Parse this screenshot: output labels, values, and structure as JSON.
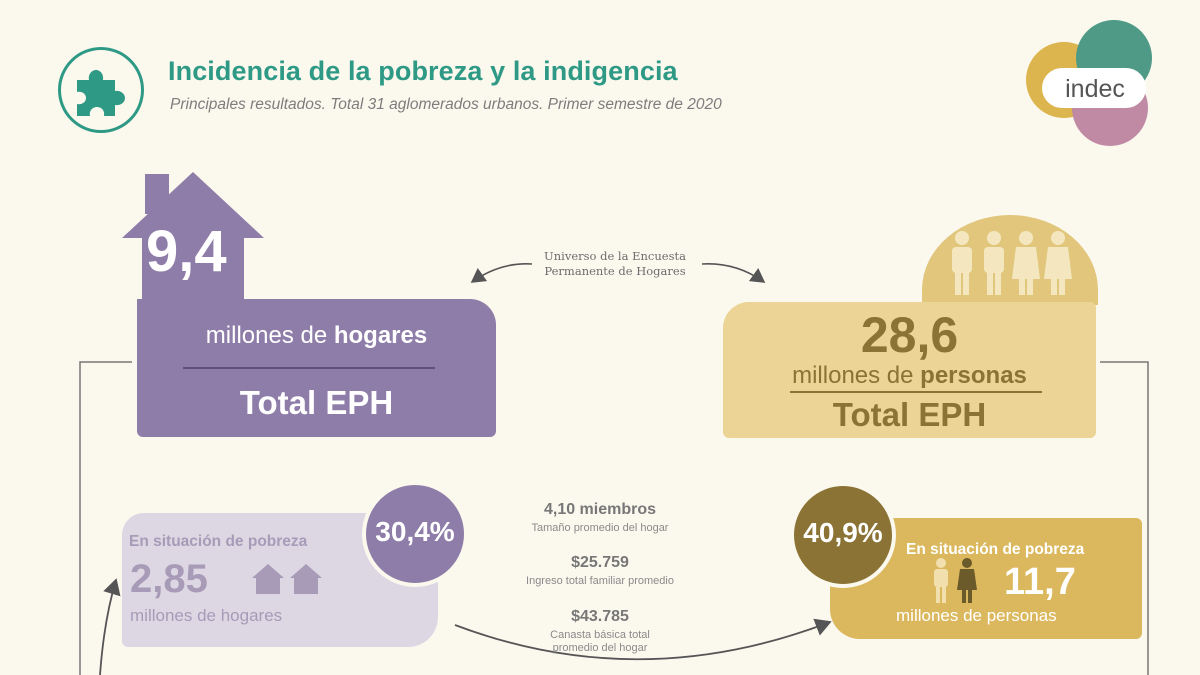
{
  "header": {
    "title": "Incidencia de la pobreza y la indigencia",
    "subtitle": "Principales resultados. Total 31 aglomerados urbanos. Primer semestre de 2020",
    "badge_icon": "puzzle-icon",
    "logo_text": "indec"
  },
  "universe_label": {
    "line1": "Universo de la Encuesta",
    "line2": "Permanente de Hogares"
  },
  "households": {
    "value": "9,4",
    "unit_prefix": "millones de ",
    "unit_bold": "hogares",
    "total": "Total EPH",
    "icon": "house-icon"
  },
  "persons": {
    "value": "28,6",
    "unit_prefix": "millones de ",
    "unit_bold": "personas",
    "total": "Total EPH",
    "icon": "people-icon"
  },
  "poverty_households": {
    "label": "En situación de pobreza",
    "percent": "30,4%",
    "value": "2,85",
    "unit": "millones de hogares"
  },
  "poverty_persons": {
    "label": "En situación de pobreza",
    "percent": "40,9%",
    "value": "11,7",
    "unit": "millones de personas"
  },
  "middle_stats": [
    {
      "value": "4,10 miembros",
      "label": "Tamaño promedio del hogar"
    },
    {
      "value": "$25.759",
      "label": "Ingreso total familiar promedio"
    },
    {
      "value": "$43.785",
      "label_line1": "Canasta básica total",
      "label_line2": "promedio del hogar"
    }
  ],
  "colors": {
    "teal": "#2e9a86",
    "purple": "#8e7da8",
    "light_purple": "#ddd7e3",
    "gold": "#ebd495",
    "dark_gold": "#8b7335",
    "mustard": "#dbb85d",
    "background": "#fbf8ee"
  }
}
